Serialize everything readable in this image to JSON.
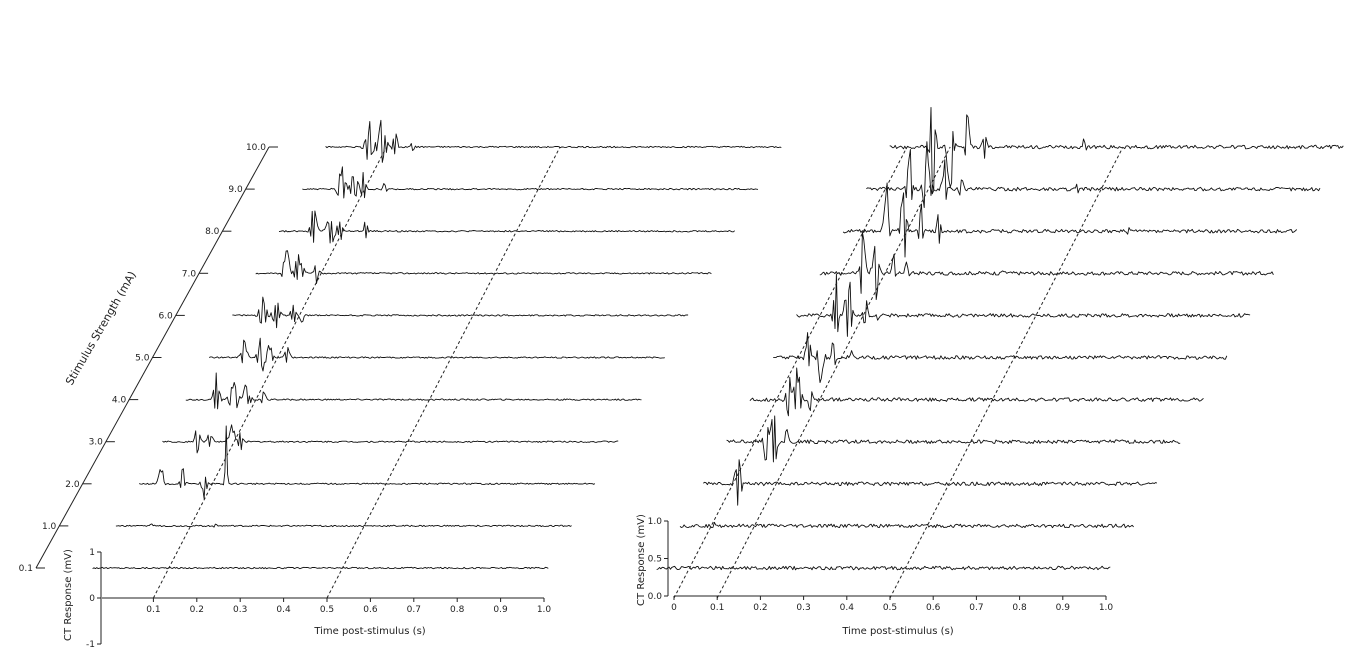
{
  "chart_data": [
    {
      "type": "line",
      "subtype": "3d-waterfall",
      "panel": "left",
      "xlabel": "Time post-stimulus (s)",
      "ylabel": "CT Response (mV)",
      "zlabel": "Stimulus Strength (mA)",
      "xlim": [
        0,
        1.0
      ],
      "ylim": [
        -1,
        1
      ],
      "x_ticks": [
        "0.1",
        "0.2",
        "0.3",
        "0.4",
        "0.5",
        "0.6",
        "0.7",
        "0.8",
        "0.9",
        "1.0"
      ],
      "y_ticks": [
        "1",
        "0",
        "-1"
      ],
      "z_ticks": [
        "0.1",
        "1.0",
        "2.0",
        "3.0",
        "4.0",
        "5.0",
        "6.0",
        "7.0",
        "8.0",
        "9.0",
        "10.0"
      ],
      "dashed_time_lines": [
        0.1,
        0.5
      ],
      "series": [
        {
          "name": "0.1",
          "bursts": []
        },
        {
          "name": "1.0",
          "bursts": [
            {
              "t": 0.04,
              "amp": 0.1,
              "w": 0.005
            },
            {
              "t": 0.19,
              "amp": 0.1,
              "w": 0.005
            }
          ]
        },
        {
          "name": "2.0",
          "bursts": [
            {
              "t": 0.01,
              "amp": 0.75,
              "w": 0.006
            },
            {
              "t": 0.06,
              "amp": 0.55,
              "w": 0.006
            },
            {
              "t": 0.11,
              "amp": 0.75,
              "w": 0.006
            },
            {
              "t": 0.16,
              "amp": 2.0,
              "w": 0.003
            }
          ]
        },
        {
          "name": "3.0",
          "bursts": [
            {
              "t": 0.04,
              "amp": 0.7,
              "w": 0.006
            },
            {
              "t": 0.07,
              "amp": 0.45,
              "w": 0.006
            },
            {
              "t": 0.12,
              "amp": 0.8,
              "w": 0.008
            },
            {
              "t": 0.14,
              "amp": 0.5,
              "w": 0.005
            }
          ]
        },
        {
          "name": "4.0",
          "bursts": [
            {
              "t": 0.03,
              "amp": 0.9,
              "w": 0.008
            },
            {
              "t": 0.07,
              "amp": 0.7,
              "w": 0.01
            },
            {
              "t": 0.1,
              "amp": 0.6,
              "w": 0.008
            },
            {
              "t": 0.14,
              "amp": 0.4,
              "w": 0.005
            }
          ]
        },
        {
          "name": "5.0",
          "bursts": [
            {
              "t": 0.04,
              "amp": 0.6,
              "w": 0.008
            },
            {
              "t": 0.08,
              "amp": 0.8,
              "w": 0.01
            },
            {
              "t": 0.1,
              "amp": 0.5,
              "w": 0.006
            },
            {
              "t": 0.14,
              "amp": 0.45,
              "w": 0.006
            }
          ]
        },
        {
          "name": "6.0",
          "bursts": [
            {
              "t": 0.03,
              "amp": 0.9,
              "w": 0.008
            },
            {
              "t": 0.06,
              "amp": 0.6,
              "w": 0.01
            },
            {
              "t": 0.1,
              "amp": 0.5,
              "w": 0.006
            },
            {
              "t": 0.12,
              "amp": 0.5,
              "w": 0.005
            }
          ]
        },
        {
          "name": "7.0",
          "bursts": [
            {
              "t": 0.03,
              "amp": 0.9,
              "w": 0.008
            },
            {
              "t": 0.06,
              "amp": 0.7,
              "w": 0.01
            },
            {
              "t": 0.1,
              "amp": 0.5,
              "w": 0.006
            }
          ]
        },
        {
          "name": "8.0",
          "bursts": [
            {
              "t": 0.04,
              "amp": 0.9,
              "w": 0.008
            },
            {
              "t": 0.08,
              "amp": 0.7,
              "w": 0.01
            },
            {
              "t": 0.1,
              "amp": 0.5,
              "w": 0.006
            },
            {
              "t": 0.16,
              "amp": 0.5,
              "w": 0.004
            }
          ]
        },
        {
          "name": "9.0",
          "bursts": [
            {
              "t": 0.05,
              "amp": 0.9,
              "w": 0.01
            },
            {
              "t": 0.08,
              "amp": 0.7,
              "w": 0.01
            },
            {
              "t": 0.1,
              "amp": 0.6,
              "w": 0.006
            },
            {
              "t": 0.15,
              "amp": 0.3,
              "w": 0.005
            }
          ]
        },
        {
          "name": "10.0",
          "bursts": [
            {
              "t": 0.06,
              "amp": 0.9,
              "w": 0.01
            },
            {
              "t": 0.09,
              "amp": 1.1,
              "w": 0.01
            },
            {
              "t": 0.12,
              "amp": 0.6,
              "w": 0.006
            },
            {
              "t": 0.16,
              "amp": 0.3,
              "w": 0.005
            }
          ]
        }
      ]
    },
    {
      "type": "line",
      "subtype": "3d-waterfall",
      "panel": "right",
      "xlabel": "Time post-stimulus (s)",
      "ylabel": "CT Response (mV)",
      "xlim": [
        0,
        1.0
      ],
      "ylim": [
        0,
        1.0
      ],
      "x_ticks": [
        "0",
        "0.1",
        "0.2",
        "0.3",
        "0.4",
        "0.5",
        "0.6",
        "0.7",
        "0.8",
        "0.9",
        "1.0"
      ],
      "y_ticks": [
        "1.0",
        "0.5",
        "0.0"
      ],
      "dashed_time_lines": [
        0,
        0.1,
        0.5
      ],
      "series": [
        {
          "name": "0.1",
          "bursts": []
        },
        {
          "name": "1.0",
          "bursts": [
            {
              "t": 0.04,
              "amp": 0.05,
              "w": 0.004
            }
          ]
        },
        {
          "name": "2.0",
          "bursts": [
            {
              "t": 0.04,
              "amp": 0.5,
              "w": 0.008
            }
          ]
        },
        {
          "name": "3.0",
          "bursts": [
            {
              "t": 0.05,
              "amp": 0.4,
              "w": 0.006
            },
            {
              "t": 0.07,
              "amp": 0.6,
              "w": 0.008
            },
            {
              "t": 0.1,
              "amp": 0.25,
              "w": 0.005
            }
          ]
        },
        {
          "name": "4.0",
          "bursts": [
            {
              "t": 0.05,
              "amp": 0.45,
              "w": 0.006
            },
            {
              "t": 0.07,
              "amp": 0.55,
              "w": 0.008
            },
            {
              "t": 0.1,
              "amp": 0.3,
              "w": 0.005
            }
          ]
        },
        {
          "name": "5.0",
          "bursts": [
            {
              "t": 0.04,
              "amp": 0.4,
              "w": 0.006
            },
            {
              "t": 0.07,
              "amp": 0.5,
              "w": 0.008
            },
            {
              "t": 0.1,
              "amp": 0.3,
              "w": 0.005
            },
            {
              "t": 0.14,
              "amp": 0.1,
              "w": 0.005
            }
          ]
        },
        {
          "name": "6.0",
          "bursts": [
            {
              "t": 0.05,
              "amp": 0.75,
              "w": 0.006
            },
            {
              "t": 0.08,
              "amp": 0.65,
              "w": 0.008
            },
            {
              "t": 0.12,
              "amp": 0.35,
              "w": 0.005
            },
            {
              "t": 0.15,
              "amp": 0.1,
              "w": 0.005
            }
          ]
        },
        {
          "name": "7.0",
          "bursts": [
            {
              "t": 0.06,
              "amp": 0.8,
              "w": 0.006
            },
            {
              "t": 0.09,
              "amp": 0.6,
              "w": 0.008
            },
            {
              "t": 0.13,
              "amp": 0.35,
              "w": 0.005
            },
            {
              "t": 0.16,
              "amp": 0.15,
              "w": 0.005
            },
            {
              "t": 0.38,
              "amp": 0.04,
              "w": 0.004
            }
          ]
        },
        {
          "name": "8.0",
          "bursts": [
            {
              "t": 0.06,
              "amp": 0.8,
              "w": 0.006
            },
            {
              "t": 0.1,
              "amp": 0.7,
              "w": 0.008
            },
            {
              "t": 0.14,
              "amp": 0.4,
              "w": 0.005
            },
            {
              "t": 0.18,
              "amp": 0.3,
              "w": 0.005
            },
            {
              "t": 0.62,
              "amp": 0.15,
              "w": 0.003
            }
          ]
        },
        {
          "name": "9.0",
          "bursts": [
            {
              "t": 0.06,
              "amp": 0.9,
              "w": 0.006
            },
            {
              "t": 0.1,
              "amp": 0.8,
              "w": 0.008
            },
            {
              "t": 0.14,
              "amp": 0.5,
              "w": 0.005
            },
            {
              "t": 0.18,
              "amp": 0.3,
              "w": 0.005
            },
            {
              "t": 0.45,
              "amp": 0.1,
              "w": 0.004
            }
          ]
        },
        {
          "name": "10.0",
          "bursts": [
            {
              "t": 0.06,
              "amp": 1.0,
              "w": 0.006
            },
            {
              "t": 0.1,
              "amp": 0.9,
              "w": 0.008
            },
            {
              "t": 0.14,
              "amp": 0.6,
              "w": 0.005
            },
            {
              "t": 0.18,
              "amp": 0.3,
              "w": 0.005
            },
            {
              "t": 0.41,
              "amp": 0.15,
              "w": 0.004
            }
          ]
        }
      ]
    }
  ]
}
